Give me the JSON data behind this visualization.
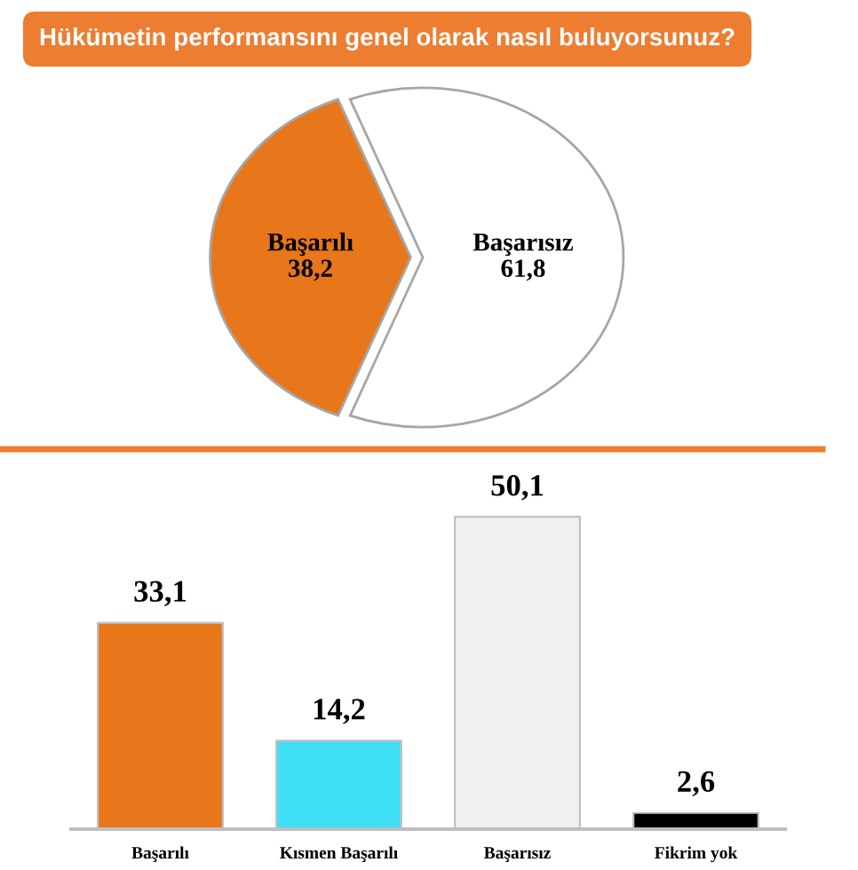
{
  "chart_data": [
    {
      "type": "pie",
      "title": "Hükümetin performansını genel olarak nasıl buluyorsunuz?",
      "categories": [
        "Başarılı",
        "Başarısız"
      ],
      "values": [
        38.2,
        61.8
      ],
      "colors": [
        "#e8761a",
        "#ffffff"
      ],
      "value_labels": [
        "38,2",
        "61,8"
      ]
    },
    {
      "type": "bar",
      "categories": [
        "Başarılı",
        "Kısmen Başarılı",
        "Başarısız",
        "Fikrim yok"
      ],
      "values": [
        33.1,
        14.2,
        50.1,
        2.6
      ],
      "colors": [
        "#e8761a",
        "#3fdff5",
        "#f0f0f0",
        "#000000"
      ],
      "value_labels": [
        "33,1",
        "14,2",
        "50,1",
        "2,6"
      ],
      "tick_labels": "x"
    }
  ]
}
